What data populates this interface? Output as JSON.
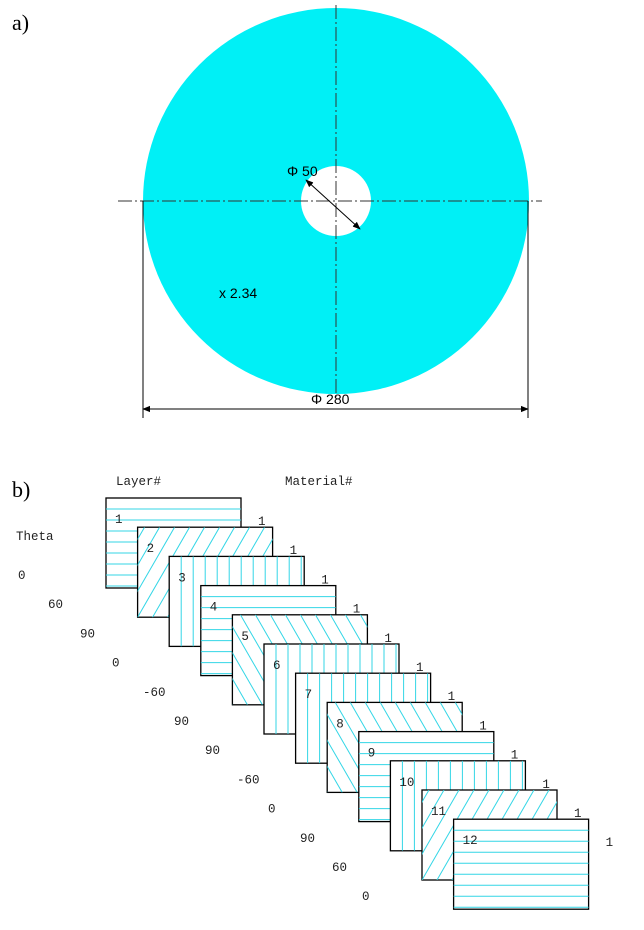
{
  "panel_a": {
    "label": "a)",
    "inner_diameter": "Φ 50",
    "outer_diameter": "Φ 280",
    "scale_note": "x 2.34",
    "colors": {
      "disk": "#00f0f6",
      "background": "#ffffff"
    }
  },
  "panel_b": {
    "label": "b)",
    "layer_header": "Layer#",
    "material_header": "Material#",
    "theta_header": "Theta",
    "hatch_color": "#33d6e6",
    "layers": [
      {
        "layer": "1",
        "theta": "0",
        "material": "1"
      },
      {
        "layer": "2",
        "theta": "60",
        "material": "1"
      },
      {
        "layer": "3",
        "theta": "90",
        "material": "1"
      },
      {
        "layer": "4",
        "theta": "0",
        "material": "1"
      },
      {
        "layer": "5",
        "theta": "-60",
        "material": "1"
      },
      {
        "layer": "6",
        "theta": "90",
        "material": "1"
      },
      {
        "layer": "7",
        "theta": "90",
        "material": "1"
      },
      {
        "layer": "8",
        "theta": "-60",
        "material": "1"
      },
      {
        "layer": "9",
        "theta": "0",
        "material": "1"
      },
      {
        "layer": "10",
        "theta": "90",
        "material": "1"
      },
      {
        "layer": "11",
        "theta": "60",
        "material": "1"
      },
      {
        "layer": "12",
        "theta": "0",
        "material": "1"
      }
    ]
  }
}
